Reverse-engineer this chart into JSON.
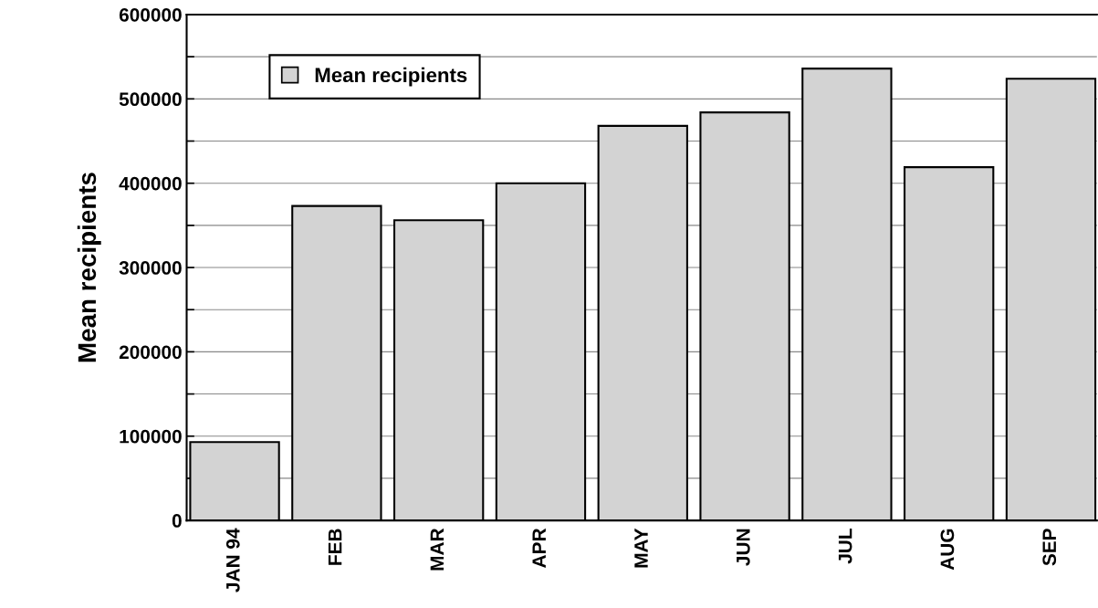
{
  "chart_data": {
    "type": "bar",
    "ylabel": "Mean recipients",
    "categories": [
      "JAN 94",
      "FEB",
      "MAR",
      "APR",
      "MAY",
      "JUN",
      "JUL",
      "AUG",
      "SEP"
    ],
    "series": [
      {
        "name": "Mean recipients",
        "color": "#d3d3d3",
        "values": [
          93000,
          373000,
          356000,
          400000,
          468000,
          484000,
          536000,
          419000,
          524000
        ]
      }
    ],
    "ylim": [
      0,
      600000
    ],
    "yticks": [
      0,
      {
        "value": 50000,
        "label": null
      },
      100000,
      {
        "value": 150000,
        "label": null
      },
      200000,
      {
        "value": 250000,
        "label": null
      },
      300000,
      {
        "value": 350000,
        "label": null
      },
      400000,
      {
        "value": 450000,
        "label": null
      },
      500000,
      {
        "value": 550000,
        "label": null
      },
      600000
    ],
    "grid": "y",
    "legend": "upper left"
  }
}
